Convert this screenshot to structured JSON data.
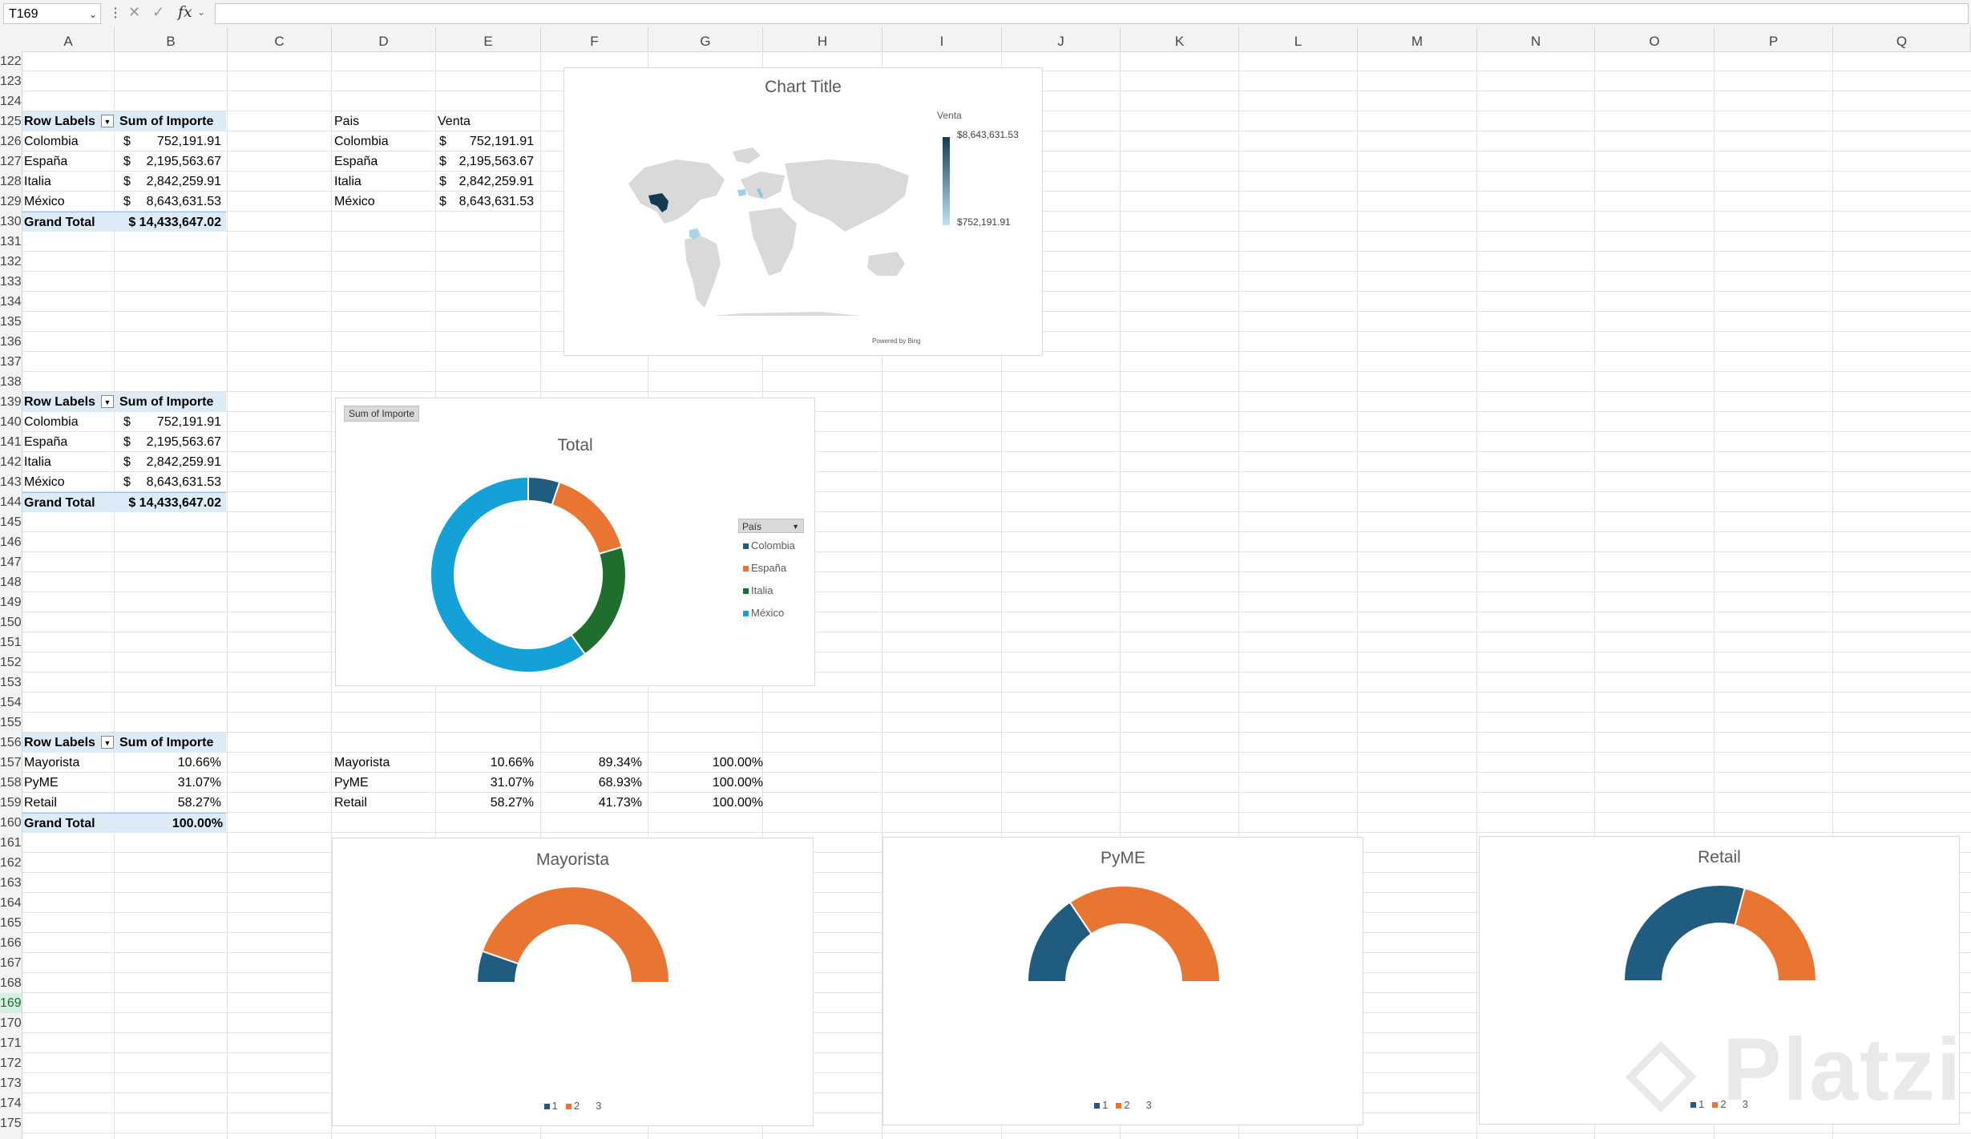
{
  "formula_bar": {
    "name_box": "T169",
    "fx": "fx",
    "formula": ""
  },
  "columns": [
    "A",
    "B",
    "C",
    "D",
    "E",
    "F",
    "G",
    "H",
    "I",
    "J",
    "K",
    "L",
    "M",
    "N",
    "O",
    "P",
    "Q"
  ],
  "rows": [
    "122",
    "123",
    "124",
    "125",
    "126",
    "127",
    "128",
    "129",
    "130",
    "131",
    "132",
    "133",
    "134",
    "135",
    "136",
    "137",
    "138",
    "139",
    "140",
    "141",
    "142",
    "143",
    "144",
    "145",
    "146",
    "147",
    "148",
    "149",
    "150",
    "151",
    "152",
    "153",
    "154",
    "155",
    "156",
    "157",
    "158",
    "159",
    "160",
    "161",
    "162",
    "163",
    "164",
    "165",
    "166",
    "167",
    "168",
    "169",
    "170",
    "171",
    "172",
    "173",
    "174",
    "175"
  ],
  "pivot1": {
    "header": [
      "Row Labels",
      "Sum of Importe"
    ],
    "rows": [
      {
        "label": "Colombia",
        "cur": "$",
        "value": "752,191.91"
      },
      {
        "label": "España",
        "cur": "$",
        "value": "2,195,563.67"
      },
      {
        "label": "Italia",
        "cur": "$",
        "value": "2,842,259.91"
      },
      {
        "label": "México",
        "cur": "$",
        "value": "8,643,631.53"
      }
    ],
    "total_label": "Grand Total",
    "total_value": "$ 14,433,647.02"
  },
  "table1": {
    "header": [
      "Pais",
      "Venta"
    ],
    "rows": [
      {
        "label": "Colombia",
        "cur": "$",
        "value": "752,191.91"
      },
      {
        "label": "España",
        "cur": "$",
        "value": "2,195,563.67"
      },
      {
        "label": "Italia",
        "cur": "$",
        "value": "2,842,259.91"
      },
      {
        "label": "México",
        "cur": "$",
        "value": "8,643,631.53"
      }
    ]
  },
  "pivot2": {
    "header": [
      "Row Labels",
      "Sum of Importe"
    ],
    "rows": [
      {
        "label": "Colombia",
        "cur": "$",
        "value": "752,191.91"
      },
      {
        "label": "España",
        "cur": "$",
        "value": "2,195,563.67"
      },
      {
        "label": "Italia",
        "cur": "$",
        "value": "2,842,259.91"
      },
      {
        "label": "México",
        "cur": "$",
        "value": "8,643,631.53"
      }
    ],
    "total_label": "Grand Total",
    "total_value": "$ 14,433,647.02"
  },
  "pivot3": {
    "header": [
      "Row Labels",
      "Sum of Importe"
    ],
    "rows": [
      {
        "label": "Mayorista",
        "value": "10.66%"
      },
      {
        "label": "PyME",
        "value": "31.07%"
      },
      {
        "label": "Retail",
        "value": "58.27%"
      }
    ],
    "total_label": "Grand Total",
    "total_value": "100.00%"
  },
  "table2": {
    "rows": [
      {
        "label": "Mayorista",
        "a": "10.66%",
        "b": "89.34%",
        "c": "100.00%"
      },
      {
        "label": "PyME",
        "a": "31.07%",
        "b": "68.93%",
        "c": "100.00%"
      },
      {
        "label": "Retail",
        "a": "58.27%",
        "b": "41.73%",
        "c": "100.00%"
      }
    ]
  },
  "map_chart": {
    "title": "Chart Title",
    "legend_title": "Venta",
    "legend_max": "$8,643,631.53",
    "legend_min": "$752,191.91",
    "attribution": "Powered by Bing"
  },
  "donut_chart": {
    "field_button": "Sum of Importe",
    "legend_button": "País",
    "colors": {
      "Colombia": "#1f5c7f",
      "España": "#e87532",
      "Italia": "#1e6e2e",
      "México": "#14a1d8"
    }
  },
  "gauges": {
    "legend": [
      "1",
      "2",
      "3"
    ],
    "colors": [
      "#1f5c7f",
      "#e87532"
    ]
  },
  "chart_data": [
    {
      "type": "map",
      "title": "Chart Title",
      "legend_title": "Venta",
      "regions": [
        "Colombia",
        "España",
        "Italia",
        "México"
      ],
      "values": [
        752191.91,
        2195563.67,
        2842259.91,
        8643631.53
      ]
    },
    {
      "type": "pie",
      "title": "Total",
      "legend_title": "País",
      "categories": [
        "Colombia",
        "España",
        "Italia",
        "México"
      ],
      "values": [
        752191.91,
        2195563.67,
        2842259.91,
        8643631.53
      ]
    },
    {
      "type": "pie",
      "title": "Mayorista",
      "categories": [
        "1",
        "2",
        "3"
      ],
      "values": [
        10.66,
        89.34,
        100.0
      ]
    },
    {
      "type": "pie",
      "title": "PyME",
      "categories": [
        "1",
        "2",
        "3"
      ],
      "values": [
        31.07,
        68.93,
        100.0
      ]
    },
    {
      "type": "pie",
      "title": "Retail",
      "categories": [
        "1",
        "2",
        "3"
      ],
      "values": [
        58.27,
        41.73,
        100.0
      ]
    }
  ],
  "watermark": "Platzi"
}
